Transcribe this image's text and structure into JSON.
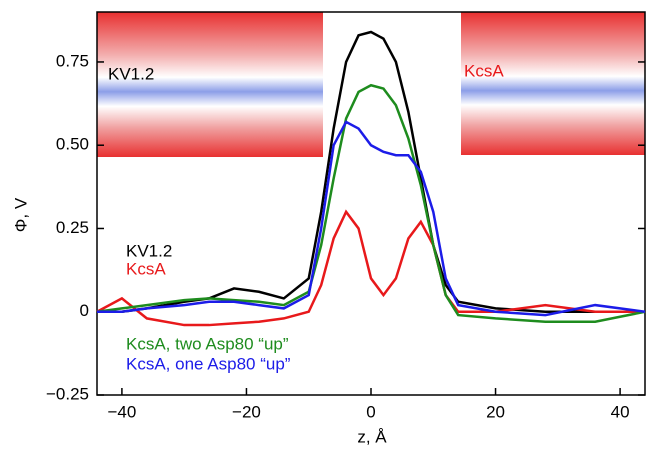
{
  "chart_data": {
    "type": "line",
    "x_label": "z, Å",
    "y_label": "Φ, V",
    "annotations": [
      "KV1.2",
      "KcsA"
    ],
    "x": [
      -44,
      -40,
      -36,
      -30,
      -26,
      -22,
      -18,
      -14,
      -10,
      -8,
      -6,
      -4,
      -2,
      0,
      2,
      4,
      6,
      8,
      10,
      12,
      14,
      20,
      28,
      36,
      44
    ],
    "series": [
      {
        "name": "KV1.2",
        "color": "#000000",
        "values": [
          0,
          0,
          0.01,
          0.03,
          0.04,
          0.07,
          0.06,
          0.04,
          0.1,
          0.3,
          0.55,
          0.75,
          0.83,
          0.84,
          0.82,
          0.75,
          0.6,
          0.4,
          0.2,
          0.08,
          0.03,
          0.01,
          0,
          0,
          0
        ]
      },
      {
        "name": "KcsA",
        "color": "#e8191b",
        "values": [
          0,
          0.04,
          -0.02,
          -0.04,
          -0.04,
          -0.035,
          -0.03,
          -0.02,
          0,
          0.08,
          0.22,
          0.3,
          0.25,
          0.1,
          0.05,
          0.1,
          0.22,
          0.27,
          0.2,
          0.05,
          0,
          0,
          0.02,
          0,
          0
        ]
      },
      {
        "name": "KcsA, two Asp80 “up”",
        "color": "#1e8c1e",
        "values": [
          0,
          0.01,
          0.02,
          0.035,
          0.04,
          0.035,
          0.03,
          0.02,
          0.06,
          0.2,
          0.4,
          0.58,
          0.66,
          0.68,
          0.67,
          0.62,
          0.52,
          0.38,
          0.2,
          0.05,
          -0.01,
          -0.02,
          -0.03,
          -0.03,
          0
        ]
      },
      {
        "name": "KcsA, one Asp80 “up”",
        "color": "#1c1ce8",
        "values": [
          0,
          0,
          0.01,
          0.02,
          0.03,
          0.03,
          0.02,
          0.01,
          0.05,
          0.25,
          0.5,
          0.57,
          0.55,
          0.5,
          0.48,
          0.47,
          0.47,
          0.42,
          0.3,
          0.1,
          0.02,
          0,
          -0.01,
          0.02,
          0
        ]
      }
    ],
    "xlim": [
      -44,
      44
    ],
    "xticks": [
      {
        "value": -40,
        "label": "−40"
      },
      {
        "value": -20,
        "label": "−20"
      },
      0,
      20,
      40
    ],
    "ylim": [
      -0.25,
      0.9
    ],
    "yticks": [
      {
        "value": -0.25,
        "label": "−0.25"
      },
      0,
      {
        "value": 0.25,
        "label": "0.25"
      },
      {
        "value": 0.5,
        "label": "0.50"
      },
      {
        "value": 0.75,
        "label": "0.75"
      }
    ]
  }
}
